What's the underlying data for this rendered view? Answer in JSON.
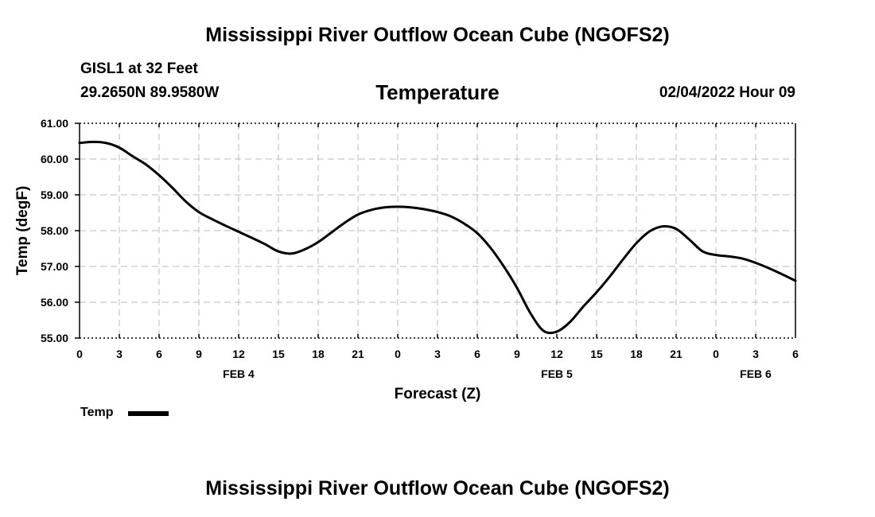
{
  "page": {
    "top_title": "Mississippi River Outflow Ocean Cube (NGOFS2)",
    "bottom_title": "Mississippi River Outflow Ocean Cube (NGOFS2)",
    "station": "GISL1 at 32 Feet",
    "coords": "29.2650N  89.9580W",
    "datetime": "02/04/2022 Hour 09",
    "legend_label": "Temp"
  },
  "colors": {
    "line": "#000000",
    "grid": "#bbbbbb"
  },
  "chart_data": {
    "type": "line",
    "title": "Temperature",
    "xlabel": "Forecast (Z)",
    "ylabel": "Temp (degF)",
    "xlim": [
      0,
      54
    ],
    "ylim": [
      55.0,
      61.0
    ],
    "yticks": [
      55.0,
      56.0,
      57.0,
      58.0,
      59.0,
      60.0,
      61.0
    ],
    "ytick_labels": [
      "55.00",
      "56.00",
      "57.00",
      "58.00",
      "59.00",
      "60.00",
      "61.00"
    ],
    "xticks": [
      0,
      3,
      6,
      9,
      12,
      15,
      18,
      21,
      24,
      27,
      30,
      33,
      36,
      39,
      42,
      45,
      48,
      51,
      54
    ],
    "xtick_labels": [
      "0",
      "3",
      "6",
      "9",
      "12",
      "15",
      "18",
      "21",
      "0",
      "3",
      "6",
      "9",
      "12",
      "15",
      "18",
      "21",
      "0",
      "3",
      "6"
    ],
    "date_labels": [
      {
        "x": 12,
        "label": "FEB 4"
      },
      {
        "x": 36,
        "label": "FEB 5"
      },
      {
        "x": 51,
        "label": "FEB 6"
      }
    ],
    "grid": true,
    "series": [
      {
        "name": "Temp",
        "x": [
          0,
          1,
          2,
          3,
          4,
          5,
          6,
          7,
          8,
          9,
          10,
          11,
          12,
          13,
          14,
          15,
          16,
          17,
          18,
          19,
          20,
          21,
          22,
          23,
          24,
          25,
          26,
          27,
          28,
          29,
          30,
          31,
          32,
          33,
          34,
          35,
          36,
          37,
          38,
          39,
          40,
          41,
          42,
          43,
          44,
          45,
          46,
          47,
          48,
          49,
          50,
          51,
          52,
          53,
          54
        ],
        "values": [
          60.45,
          60.48,
          60.45,
          60.32,
          60.08,
          59.85,
          59.55,
          59.2,
          58.82,
          58.52,
          58.32,
          58.14,
          57.97,
          57.8,
          57.62,
          57.42,
          57.36,
          57.48,
          57.68,
          57.95,
          58.22,
          58.45,
          58.58,
          58.65,
          58.67,
          58.65,
          58.6,
          58.52,
          58.4,
          58.2,
          57.93,
          57.52,
          57.0,
          56.4,
          55.7,
          55.2,
          55.18,
          55.45,
          55.88,
          56.28,
          56.72,
          57.2,
          57.65,
          57.98,
          58.12,
          58.05,
          57.75,
          57.42,
          57.32,
          57.28,
          57.22,
          57.1,
          56.95,
          56.78,
          56.6
        ]
      }
    ]
  }
}
